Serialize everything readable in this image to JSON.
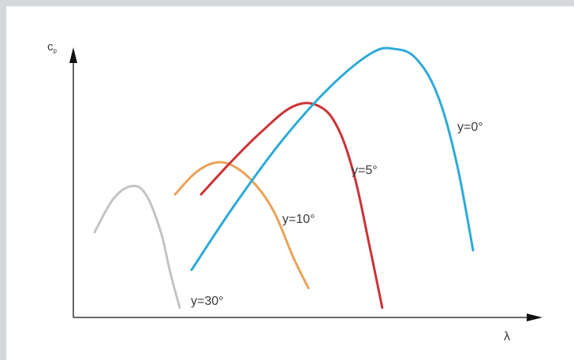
{
  "chart_data": {
    "type": "line",
    "title": "",
    "xlabel": "λ",
    "ylabel_main": "c",
    "ylabel_sub": "p",
    "xlim": [
      0,
      10
    ],
    "ylim": [
      0,
      10
    ],
    "grid": false,
    "legend": "none",
    "series": [
      {
        "name": "γ=30°",
        "label": "y=30°",
        "color": "#c3c3c3",
        "x": [
          0.45,
          0.85,
          1.25,
          1.55,
          1.85,
          2.05,
          2.25
        ],
        "y": [
          3.05,
          4.25,
          4.7,
          4.35,
          3.05,
          1.6,
          0.35
        ]
      },
      {
        "name": "γ=10°",
        "label": "y=10°",
        "color": "#eaa258",
        "x": [
          2.15,
          2.6,
          3.05,
          3.45,
          3.85,
          4.25,
          4.65,
          4.97
        ],
        "y": [
          4.4,
          5.2,
          5.55,
          5.35,
          4.75,
          3.75,
          2.15,
          1.05
        ]
      },
      {
        "name": "γ=5°",
        "label": "y=5°",
        "color": "#cc3337",
        "x": [
          2.7,
          3.3,
          3.95,
          4.65,
          5.2,
          5.6,
          5.95,
          6.25,
          6.53
        ],
        "y": [
          4.4,
          5.5,
          6.6,
          7.55,
          7.55,
          6.75,
          5.0,
          2.65,
          0.35
        ]
      },
      {
        "name": "γ=0°",
        "label": "y=0°",
        "color": "#2eaad7",
        "x": [
          2.5,
          3.4,
          4.4,
          5.4,
          6.3,
          6.8,
          7.25,
          7.7,
          8.1,
          8.45
        ],
        "y": [
          1.7,
          4.0,
          6.3,
          8.2,
          9.45,
          9.6,
          9.25,
          7.95,
          5.55,
          2.4
        ]
      }
    ]
  }
}
